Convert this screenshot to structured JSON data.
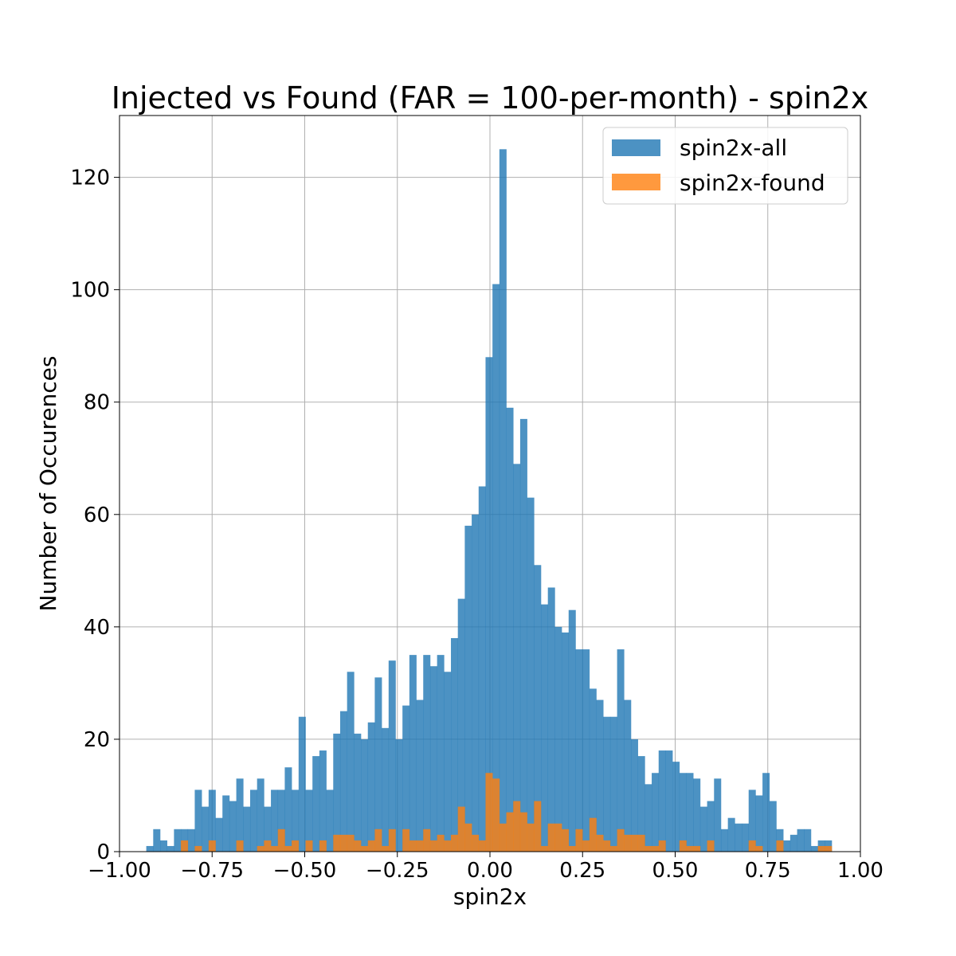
{
  "chart_data": {
    "type": "bar",
    "title": "Injected vs Found (FAR = 100-per-month) - spin2x",
    "xlabel": "spin2x",
    "ylabel": "Number of Occurences",
    "xlim": [
      -1.0,
      1.0
    ],
    "ylim": [
      0,
      131
    ],
    "grid": true,
    "legend_position": "top-right",
    "x_ticks": [
      -1.0,
      -0.75,
      -0.5,
      -0.25,
      0.0,
      0.25,
      0.5,
      0.75,
      1.0
    ],
    "x_tick_labels": [
      "−1.00",
      "−0.75",
      "−0.50",
      "−0.25",
      "0.00",
      "0.25",
      "0.50",
      "0.75",
      "1.00"
    ],
    "y_ticks": [
      0,
      20,
      40,
      60,
      80,
      100,
      120
    ],
    "y_tick_labels": [
      "0",
      "20",
      "40",
      "60",
      "80",
      "100",
      "120"
    ],
    "bin_start": -0.9277,
    "bin_width": 0.01869,
    "series": [
      {
        "name": "spin2x-all",
        "color": "#1f77b4",
        "values": [
          1,
          4,
          2,
          1,
          4,
          4,
          4,
          11,
          8,
          11,
          6,
          10,
          9,
          13,
          8,
          11,
          13,
          8,
          11,
          11,
          15,
          11,
          24,
          11,
          17,
          18,
          11,
          21,
          25,
          32,
          21,
          20,
          23,
          31,
          22,
          34,
          20,
          26,
          35,
          27,
          35,
          33,
          35,
          32,
          38,
          45,
          58,
          60,
          65,
          88,
          101,
          125,
          79,
          69,
          77,
          63,
          51,
          44,
          47,
          40,
          39,
          43,
          36,
          36,
          29,
          27,
          24,
          24,
          36,
          27,
          20,
          17,
          12,
          14,
          18,
          18,
          16,
          14,
          14,
          13,
          8,
          9,
          13,
          4,
          6,
          5,
          5,
          11,
          10,
          14,
          9,
          4,
          2,
          3,
          4,
          4,
          1,
          2,
          2
        ],
        "alpha": 0.8
      },
      {
        "name": "spin2x-found",
        "color": "#ff7f0e",
        "values": [
          0,
          0,
          0,
          0,
          0,
          2,
          0,
          1,
          0,
          2,
          0,
          0,
          0,
          2,
          0,
          0,
          1,
          2,
          1,
          4,
          1,
          2,
          0,
          2,
          0,
          2,
          0,
          3,
          3,
          3,
          2,
          1,
          2,
          4,
          1,
          4,
          0,
          4,
          2,
          2,
          4,
          2,
          3,
          2,
          3,
          8,
          5,
          3,
          2,
          14,
          13,
          5,
          7,
          9,
          7,
          5,
          9,
          1,
          5,
          5,
          4,
          1,
          4,
          2,
          6,
          3,
          2,
          1,
          4,
          3,
          3,
          3,
          1,
          1,
          2,
          0,
          0,
          2,
          1,
          1,
          0,
          2,
          0,
          0,
          0,
          0,
          0,
          2,
          1,
          0,
          0,
          2,
          0,
          0,
          0,
          0,
          0,
          1,
          1
        ],
        "alpha": 0.8
      }
    ]
  }
}
